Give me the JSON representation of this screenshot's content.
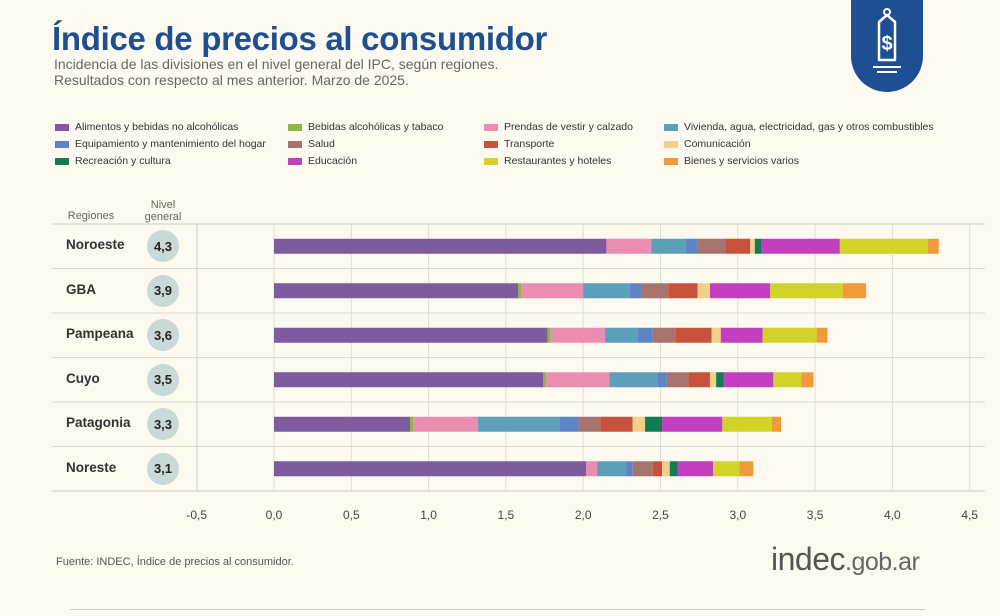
{
  "header": {
    "title": "Índice de precios al consumidor",
    "subtitle_line1": "Incidencia de las divisiones en el nivel general del IPC, según regiones.",
    "subtitle_line2": "Resultados con respecto al mes anterior. Marzo de 2025."
  },
  "badge": {
    "icon": "price-tag-dollar-icon",
    "color": "#1f4f93"
  },
  "table_headers": {
    "regions": "Regiones",
    "level_line1": "Nivel",
    "level_line2": "general"
  },
  "footer": {
    "source": "Fuente: INDEC, Índice de precios al consumidor.",
    "logo_main": "indec",
    "logo_suffix": ".gob.ar"
  },
  "chart_data": {
    "type": "bar",
    "orientation": "horizontal",
    "stacked": true,
    "categories": [
      "Noroeste",
      "GBA",
      "Pampeana",
      "Cuyo",
      "Patagonia",
      "Noreste"
    ],
    "nivel_general": [
      "4,3",
      "3,9",
      "3,6",
      "3,5",
      "3,3",
      "3,1"
    ],
    "xlim": [
      -0.5,
      4.5
    ],
    "xticks": [
      -0.5,
      0.0,
      0.5,
      1.0,
      1.5,
      2.0,
      2.5,
      3.0,
      3.5,
      4.0,
      4.5
    ],
    "xtick_labels": [
      "-0,5",
      "0,0",
      "0,5",
      "1,0",
      "1,5",
      "2,0",
      "2,5",
      "3,0",
      "3,5",
      "4,0",
      "4,5"
    ],
    "grid": "vertical",
    "legend_position": "top",
    "series": [
      {
        "name": "Alimentos y bebidas no alcohólicas",
        "color": "#7d5b9e",
        "values": [
          2.15,
          1.58,
          1.77,
          1.74,
          0.88,
          2.02
        ]
      },
      {
        "name": "Bebidas alcohólicas y tabaco",
        "color": "#8db53f",
        "values": [
          0.0,
          0.02,
          0.02,
          0.02,
          0.02,
          0.0
        ]
      },
      {
        "name": "Prendas de vestir y calzado",
        "color": "#ea8db0",
        "values": [
          0.29,
          0.4,
          0.35,
          0.41,
          0.42,
          0.07
        ]
      },
      {
        "name": "Vivienda, agua, electricidad, gas y otros combustibles",
        "color": "#5d9eb8",
        "values": [
          0.22,
          0.3,
          0.21,
          0.31,
          0.53,
          0.19
        ]
      },
      {
        "name": "Equipamiento y mantenimiento del hogar",
        "color": "#5f84c6",
        "values": [
          0.08,
          0.08,
          0.1,
          0.06,
          0.12,
          0.04
        ]
      },
      {
        "name": "Salud",
        "color": "#a7746d",
        "values": [
          0.18,
          0.17,
          0.15,
          0.14,
          0.14,
          0.13
        ]
      },
      {
        "name": "Transporte",
        "color": "#c7523c",
        "values": [
          0.16,
          0.19,
          0.23,
          0.14,
          0.21,
          0.06
        ]
      },
      {
        "name": "Comunicación",
        "color": "#f0d08a",
        "values": [
          0.03,
          0.08,
          0.06,
          0.04,
          0.08,
          0.05
        ]
      },
      {
        "name": "Recreación y cultura",
        "color": "#137c55",
        "values": [
          0.04,
          0.0,
          0.0,
          0.05,
          0.11,
          0.05
        ]
      },
      {
        "name": "Educación",
        "color": "#c23fbf",
        "values": [
          0.51,
          0.39,
          0.27,
          0.32,
          0.39,
          0.23
        ]
      },
      {
        "name": "Restaurantes y hoteles",
        "color": "#d1d22a",
        "values": [
          0.57,
          0.47,
          0.35,
          0.18,
          0.32,
          0.17
        ]
      },
      {
        "name": "Bienes y servicios varios",
        "color": "#f29a3a",
        "values": [
          0.07,
          0.15,
          0.07,
          0.08,
          0.06,
          0.09
        ]
      }
    ]
  }
}
